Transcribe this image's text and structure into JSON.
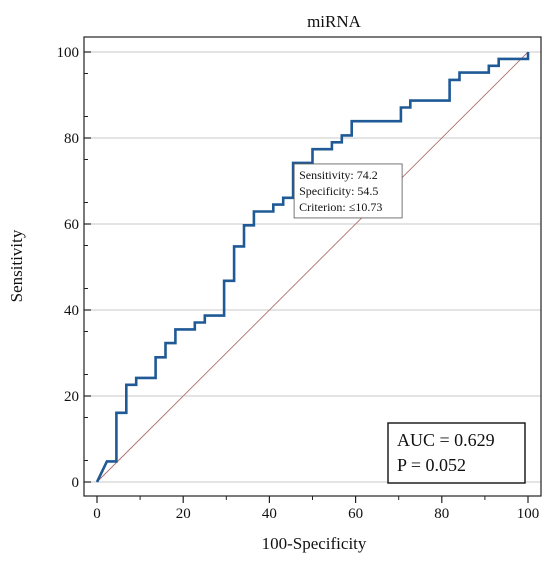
{
  "chart_data": {
    "type": "line",
    "title": "miRNA",
    "xlabel": "100-Specificity",
    "ylabel": "Sensitivity",
    "xlim": [
      0,
      100
    ],
    "ylim": [
      0,
      100
    ],
    "xticks": [
      0,
      20,
      40,
      60,
      80,
      100
    ],
    "yticks": [
      0,
      20,
      40,
      60,
      80,
      100
    ],
    "x_tick_labels": [
      "0",
      "20",
      "40",
      "60",
      "80",
      "100"
    ],
    "y_tick_labels": [
      "0",
      "20",
      "40",
      "60",
      "80",
      "100"
    ],
    "grid": true,
    "colors": {
      "roc": "#1f5a96",
      "diagonal": "#b07070",
      "grid": "#c8c8c8"
    },
    "series": [
      {
        "type": "step",
        "x": [
          0,
          2.3,
          2.3,
          4.5,
          4.5,
          6.8,
          6.8,
          9.1,
          9.1,
          11.4,
          11.4,
          13.6,
          13.6,
          15.9,
          15.9,
          18.2,
          18.2,
          22.7,
          22.7,
          25.0,
          25.0,
          29.5,
          29.5,
          31.8,
          31.8,
          34.1,
          34.1,
          36.4,
          36.4,
          40.9,
          40.9,
          43.2,
          43.2,
          45.5,
          45.5,
          50.0,
          50.0,
          54.5,
          54.5,
          56.8,
          56.8,
          59.1,
          59.1,
          70.5,
          70.5,
          72.7,
          72.7,
          81.8,
          81.8,
          84.1,
          84.1,
          90.9,
          90.9,
          93.2,
          93.2,
          100,
          100
        ],
        "y": [
          0,
          4.8,
          4.8,
          4.8,
          16.1,
          16.1,
          22.6,
          22.6,
          24.2,
          24.2,
          24.2,
          24.2,
          29.0,
          29.0,
          32.3,
          32.3,
          35.5,
          35.5,
          37.1,
          37.1,
          38.7,
          38.7,
          46.8,
          46.8,
          54.8,
          54.8,
          59.7,
          59.7,
          62.9,
          62.9,
          64.5,
          64.5,
          66.1,
          66.1,
          74.2,
          74.2,
          77.4,
          77.4,
          79.0,
          79.0,
          80.6,
          80.6,
          83.9,
          83.9,
          87.1,
          87.1,
          88.7,
          88.7,
          93.5,
          93.5,
          95.2,
          95.2,
          96.8,
          96.8,
          98.4,
          98.4,
          100
        ]
      },
      {
        "type": "reference",
        "x": [
          0,
          100
        ],
        "y": [
          0,
          100
        ]
      }
    ],
    "annotation": {
      "x": 45.5,
      "y": 74.2,
      "lines": [
        "Sensitivity: 74.2",
        "Specificity: 54.5",
        "Criterion: ≤10.73"
      ]
    },
    "stats_box": {
      "lines": [
        "AUC = 0.629",
        "P = 0.052"
      ]
    }
  }
}
